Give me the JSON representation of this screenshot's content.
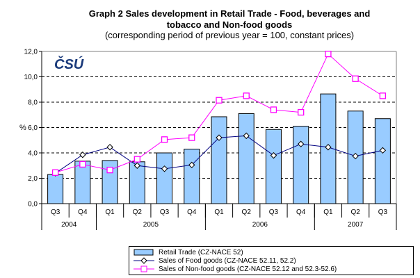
{
  "chart_data": {
    "type": "bar+line",
    "title": "Graph 2 Sales development in Retail Trade - Food, beverages and tobacco and Non-food goods",
    "title_line1": "Graph 2 Sales development in Retail Trade - Food, beverages and",
    "title_line2": "tobacco and Non-food goods",
    "subtitle": "(corresponding period of previous year = 100, constant prices)",
    "ylabel": "%",
    "ylim": [
      0,
      12
    ],
    "yticks": [
      "0,0",
      "2,0",
      "4,0",
      "6,0",
      "8,0",
      "10,0",
      "12,0"
    ],
    "grid": true,
    "categories": [
      "Q3",
      "Q4",
      "Q1",
      "Q2",
      "Q3",
      "Q4",
      "Q1",
      "Q2",
      "Q3",
      "Q4",
      "Q1",
      "Q2",
      "Q3"
    ],
    "years": [
      {
        "label": "2004",
        "span": 2
      },
      {
        "label": "2005",
        "span": 4
      },
      {
        "label": "2006",
        "span": 4
      },
      {
        "label": "2007",
        "span": 3
      }
    ],
    "series": [
      {
        "name": "Retail Trade (CZ-NACE 52)",
        "kind": "bar",
        "color": "#99CCFF",
        "values": [
          2.3,
          3.35,
          3.4,
          3.3,
          4.0,
          4.3,
          6.85,
          7.1,
          5.85,
          6.1,
          8.65,
          7.3,
          6.7
        ]
      },
      {
        "name": "Sales of Food goods (CZ-NACE 52.11, 52.2)",
        "kind": "line",
        "marker": "diamond",
        "color": "#000080",
        "values": [
          2.4,
          3.85,
          4.45,
          3.0,
          2.75,
          3.05,
          5.2,
          5.35,
          3.8,
          4.7,
          4.45,
          3.75,
          4.2
        ]
      },
      {
        "name": "Sales of Non-food goods (CZ-NACE 52.12 and 52.3-52.6)",
        "kind": "line",
        "marker": "square",
        "color": "#FF00FF",
        "values": [
          2.45,
          3.1,
          2.65,
          3.5,
          5.05,
          5.2,
          8.15,
          8.5,
          7.4,
          7.2,
          11.8,
          9.85,
          8.5
        ]
      }
    ],
    "legend": "bottom"
  },
  "logo": "ČSÚ"
}
